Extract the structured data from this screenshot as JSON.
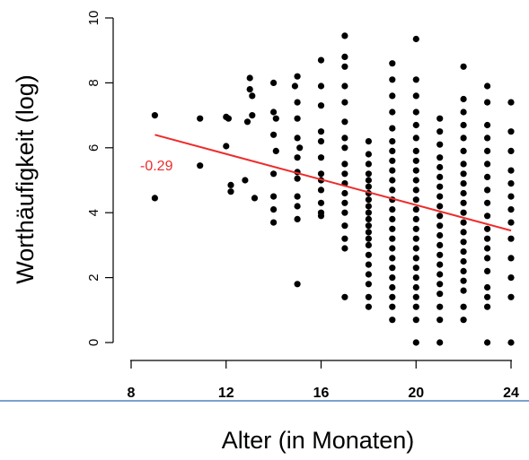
{
  "chart_data": {
    "type": "scatter",
    "xlabel": "Alter (in Monaten)",
    "ylabel": "Worthäufigkeit (log)",
    "xlim": [
      8,
      24
    ],
    "ylim": [
      0,
      10
    ],
    "x_ticks": [
      "8",
      "12",
      "16",
      "20",
      "24"
    ],
    "y_ticks": [
      "0",
      "2",
      "4",
      "6",
      "8",
      "10"
    ],
    "grid": false,
    "regression_line": {
      "label": "-0.29",
      "color": "#ee2b2b",
      "x": [
        9,
        24
      ],
      "y": [
        6.4,
        3.45
      ]
    },
    "series": [
      {
        "color": "#000000",
        "points": [
          [
            9,
            7.0
          ],
          [
            9,
            4.45
          ],
          [
            10.9,
            6.9
          ],
          [
            10.9,
            5.45
          ],
          [
            12,
            6.05
          ],
          [
            12,
            6.95
          ],
          [
            12.1,
            6.9
          ],
          [
            12.2,
            4.85
          ],
          [
            12.2,
            4.65
          ],
          [
            13,
            8.15
          ],
          [
            13,
            7.8
          ],
          [
            13.1,
            7.6
          ],
          [
            13.1,
            7.0
          ],
          [
            12.9,
            6.8
          ],
          [
            12.8,
            5.0
          ],
          [
            13.2,
            4.45
          ],
          [
            14,
            8.0
          ],
          [
            14,
            7.1
          ],
          [
            14,
            6.4
          ],
          [
            14,
            5.2
          ],
          [
            14,
            4.5
          ],
          [
            14,
            4.1
          ],
          [
            14,
            3.7
          ],
          [
            14.1,
            5.9
          ],
          [
            14.1,
            6.9
          ],
          [
            15,
            8.2
          ],
          [
            15,
            7.4
          ],
          [
            15,
            6.9
          ],
          [
            15,
            6.3
          ],
          [
            15,
            5.7
          ],
          [
            15,
            5.25
          ],
          [
            15,
            5.05
          ],
          [
            15,
            4.5
          ],
          [
            15,
            4.2
          ],
          [
            15,
            3.8
          ],
          [
            15,
            1.8
          ],
          [
            15.1,
            6.0
          ],
          [
            14.9,
            7.9
          ],
          [
            16,
            8.7
          ],
          [
            16,
            7.9
          ],
          [
            16,
            7.3
          ],
          [
            16,
            6.5
          ],
          [
            16,
            6.2
          ],
          [
            16,
            5.7
          ],
          [
            16,
            5.2
          ],
          [
            16,
            5.0
          ],
          [
            16,
            4.7
          ],
          [
            16,
            4.3
          ],
          [
            16,
            4.0
          ],
          [
            16,
            3.9
          ],
          [
            17,
            9.45
          ],
          [
            17,
            8.8
          ],
          [
            17,
            8.5
          ],
          [
            17,
            7.9
          ],
          [
            17,
            7.4
          ],
          [
            17,
            6.8
          ],
          [
            17,
            6.3
          ],
          [
            17,
            6.0
          ],
          [
            17,
            5.5
          ],
          [
            17,
            5.2
          ],
          [
            17,
            4.9
          ],
          [
            17,
            4.6
          ],
          [
            17,
            4.3
          ],
          [
            17,
            4.0
          ],
          [
            17,
            3.6
          ],
          [
            17,
            3.2
          ],
          [
            17,
            2.9
          ],
          [
            17,
            1.4
          ],
          [
            18,
            6.2
          ],
          [
            18,
            5.8
          ],
          [
            18,
            5.5
          ],
          [
            18,
            5.2
          ],
          [
            18,
            5.0
          ],
          [
            18,
            4.8
          ],
          [
            18,
            4.6
          ],
          [
            18,
            4.4
          ],
          [
            18,
            4.2
          ],
          [
            18,
            4.0
          ],
          [
            18,
            3.8
          ],
          [
            18,
            3.6
          ],
          [
            18,
            3.4
          ],
          [
            18,
            3.2
          ],
          [
            18,
            3.0
          ],
          [
            18,
            2.7
          ],
          [
            18,
            2.4
          ],
          [
            18,
            2.1
          ],
          [
            18,
            1.8
          ],
          [
            18,
            1.4
          ],
          [
            18,
            1.1
          ],
          [
            19,
            8.6
          ],
          [
            19,
            8.1
          ],
          [
            19,
            7.6
          ],
          [
            19,
            7.1
          ],
          [
            19,
            6.6
          ],
          [
            19,
            6.2
          ],
          [
            19,
            5.9
          ],
          [
            19,
            5.6
          ],
          [
            19,
            5.3
          ],
          [
            19,
            5.0
          ],
          [
            19,
            4.7
          ],
          [
            19,
            4.4
          ],
          [
            19,
            4.1
          ],
          [
            19,
            3.8
          ],
          [
            19,
            3.5
          ],
          [
            19,
            3.2
          ],
          [
            19,
            2.9
          ],
          [
            19,
            2.6
          ],
          [
            19,
            2.3
          ],
          [
            19,
            2.0
          ],
          [
            19,
            1.7
          ],
          [
            19,
            1.4
          ],
          [
            19,
            1.1
          ],
          [
            19,
            0.7
          ],
          [
            20,
            9.35
          ],
          [
            20,
            8.1
          ],
          [
            20,
            7.6
          ],
          [
            20,
            7.1
          ],
          [
            20,
            6.7
          ],
          [
            20,
            6.3
          ],
          [
            20,
            5.9
          ],
          [
            20,
            5.6
          ],
          [
            20,
            5.3
          ],
          [
            20,
            5.0
          ],
          [
            20,
            4.7
          ],
          [
            20,
            4.4
          ],
          [
            20,
            4.1
          ],
          [
            20,
            3.8
          ],
          [
            20,
            3.5
          ],
          [
            20,
            3.2
          ],
          [
            20,
            2.9
          ],
          [
            20,
            2.6
          ],
          [
            20,
            2.3
          ],
          [
            20,
            2.0
          ],
          [
            20,
            1.7
          ],
          [
            20,
            1.4
          ],
          [
            20,
            1.1
          ],
          [
            20,
            0.7
          ],
          [
            20,
            0.0
          ],
          [
            21,
            6.9
          ],
          [
            21,
            6.5
          ],
          [
            21,
            6.1
          ],
          [
            21,
            5.7
          ],
          [
            21,
            5.4
          ],
          [
            21,
            5.1
          ],
          [
            21,
            4.8
          ],
          [
            21,
            4.5
          ],
          [
            21,
            4.2
          ],
          [
            21,
            3.9
          ],
          [
            21,
            3.6
          ],
          [
            21,
            3.3
          ],
          [
            21,
            3.0
          ],
          [
            21,
            2.7
          ],
          [
            21,
            2.4
          ],
          [
            21,
            2.1
          ],
          [
            21,
            1.8
          ],
          [
            21,
            1.5
          ],
          [
            21,
            1.1
          ],
          [
            21,
            0.7
          ],
          [
            21,
            0.0
          ],
          [
            22,
            8.5
          ],
          [
            22,
            7.5
          ],
          [
            22,
            7.1
          ],
          [
            22,
            6.7
          ],
          [
            22,
            6.3
          ],
          [
            22,
            5.9
          ],
          [
            22,
            5.5
          ],
          [
            22,
            5.2
          ],
          [
            22,
            4.9
          ],
          [
            22,
            4.6
          ],
          [
            22,
            4.3
          ],
          [
            22,
            4.0
          ],
          [
            22,
            3.7
          ],
          [
            22,
            3.4
          ],
          [
            22,
            3.1
          ],
          [
            22,
            2.8
          ],
          [
            22,
            2.5
          ],
          [
            22,
            2.2
          ],
          [
            22,
            1.9
          ],
          [
            22,
            1.6
          ],
          [
            22,
            1.1
          ],
          [
            22,
            0.7
          ],
          [
            23,
            7.9
          ],
          [
            23,
            7.4
          ],
          [
            23,
            6.7
          ],
          [
            23,
            6.3
          ],
          [
            23,
            5.9
          ],
          [
            23,
            5.5
          ],
          [
            23,
            5.1
          ],
          [
            23,
            4.7
          ],
          [
            23,
            4.3
          ],
          [
            23,
            3.9
          ],
          [
            23,
            3.5
          ],
          [
            23,
            3.2
          ],
          [
            23,
            2.9
          ],
          [
            23,
            2.6
          ],
          [
            23,
            2.2
          ],
          [
            23,
            1.7
          ],
          [
            23,
            1.4
          ],
          [
            23,
            1.1
          ],
          [
            23,
            0.0
          ],
          [
            24,
            7.4
          ],
          [
            24,
            6.5
          ],
          [
            24,
            5.9
          ],
          [
            24,
            5.3
          ],
          [
            24,
            4.9
          ],
          [
            24,
            4.5
          ],
          [
            24,
            4.1
          ],
          [
            24,
            3.7
          ],
          [
            24,
            3.2
          ],
          [
            24,
            2.6
          ],
          [
            24,
            2.0
          ],
          [
            24,
            1.4
          ],
          [
            24,
            0.0
          ]
        ]
      }
    ]
  },
  "colors": {
    "points": "#000000",
    "regression": "#ee2b2b",
    "divider": "#4f81bd"
  }
}
